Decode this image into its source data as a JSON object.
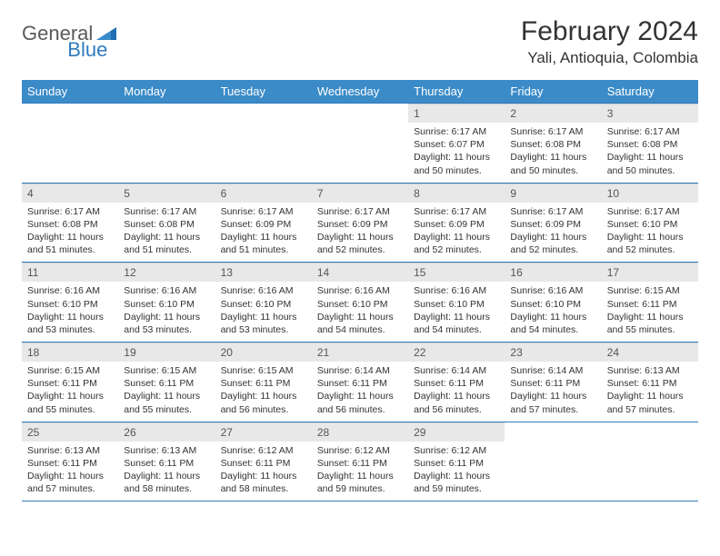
{
  "brand": {
    "text1": "General",
    "text2": "Blue"
  },
  "title": "February 2024",
  "location": "Yali, Antioquia, Colombia",
  "colors": {
    "header_bg": "#3b8bc8",
    "header_text": "#ffffff",
    "daynum_bg": "#e8e8e8",
    "border": "#2f7bbf",
    "logo_gray": "#5a5a5a",
    "logo_blue": "#2f7bbf"
  },
  "day_headers": [
    "Sunday",
    "Monday",
    "Tuesday",
    "Wednesday",
    "Thursday",
    "Friday",
    "Saturday"
  ],
  "weeks": [
    [
      null,
      null,
      null,
      null,
      {
        "n": "1",
        "sunrise": "6:17 AM",
        "sunset": "6:07 PM",
        "dl": "11 hours and 50 minutes."
      },
      {
        "n": "2",
        "sunrise": "6:17 AM",
        "sunset": "6:08 PM",
        "dl": "11 hours and 50 minutes."
      },
      {
        "n": "3",
        "sunrise": "6:17 AM",
        "sunset": "6:08 PM",
        "dl": "11 hours and 50 minutes."
      }
    ],
    [
      {
        "n": "4",
        "sunrise": "6:17 AM",
        "sunset": "6:08 PM",
        "dl": "11 hours and 51 minutes."
      },
      {
        "n": "5",
        "sunrise": "6:17 AM",
        "sunset": "6:08 PM",
        "dl": "11 hours and 51 minutes."
      },
      {
        "n": "6",
        "sunrise": "6:17 AM",
        "sunset": "6:09 PM",
        "dl": "11 hours and 51 minutes."
      },
      {
        "n": "7",
        "sunrise": "6:17 AM",
        "sunset": "6:09 PM",
        "dl": "11 hours and 52 minutes."
      },
      {
        "n": "8",
        "sunrise": "6:17 AM",
        "sunset": "6:09 PM",
        "dl": "11 hours and 52 minutes."
      },
      {
        "n": "9",
        "sunrise": "6:17 AM",
        "sunset": "6:09 PM",
        "dl": "11 hours and 52 minutes."
      },
      {
        "n": "10",
        "sunrise": "6:17 AM",
        "sunset": "6:10 PM",
        "dl": "11 hours and 52 minutes."
      }
    ],
    [
      {
        "n": "11",
        "sunrise": "6:16 AM",
        "sunset": "6:10 PM",
        "dl": "11 hours and 53 minutes."
      },
      {
        "n": "12",
        "sunrise": "6:16 AM",
        "sunset": "6:10 PM",
        "dl": "11 hours and 53 minutes."
      },
      {
        "n": "13",
        "sunrise": "6:16 AM",
        "sunset": "6:10 PM",
        "dl": "11 hours and 53 minutes."
      },
      {
        "n": "14",
        "sunrise": "6:16 AM",
        "sunset": "6:10 PM",
        "dl": "11 hours and 54 minutes."
      },
      {
        "n": "15",
        "sunrise": "6:16 AM",
        "sunset": "6:10 PM",
        "dl": "11 hours and 54 minutes."
      },
      {
        "n": "16",
        "sunrise": "6:16 AM",
        "sunset": "6:10 PM",
        "dl": "11 hours and 54 minutes."
      },
      {
        "n": "17",
        "sunrise": "6:15 AM",
        "sunset": "6:11 PM",
        "dl": "11 hours and 55 minutes."
      }
    ],
    [
      {
        "n": "18",
        "sunrise": "6:15 AM",
        "sunset": "6:11 PM",
        "dl": "11 hours and 55 minutes."
      },
      {
        "n": "19",
        "sunrise": "6:15 AM",
        "sunset": "6:11 PM",
        "dl": "11 hours and 55 minutes."
      },
      {
        "n": "20",
        "sunrise": "6:15 AM",
        "sunset": "6:11 PM",
        "dl": "11 hours and 56 minutes."
      },
      {
        "n": "21",
        "sunrise": "6:14 AM",
        "sunset": "6:11 PM",
        "dl": "11 hours and 56 minutes."
      },
      {
        "n": "22",
        "sunrise": "6:14 AM",
        "sunset": "6:11 PM",
        "dl": "11 hours and 56 minutes."
      },
      {
        "n": "23",
        "sunrise": "6:14 AM",
        "sunset": "6:11 PM",
        "dl": "11 hours and 57 minutes."
      },
      {
        "n": "24",
        "sunrise": "6:13 AM",
        "sunset": "6:11 PM",
        "dl": "11 hours and 57 minutes."
      }
    ],
    [
      {
        "n": "25",
        "sunrise": "6:13 AM",
        "sunset": "6:11 PM",
        "dl": "11 hours and 57 minutes."
      },
      {
        "n": "26",
        "sunrise": "6:13 AM",
        "sunset": "6:11 PM",
        "dl": "11 hours and 58 minutes."
      },
      {
        "n": "27",
        "sunrise": "6:12 AM",
        "sunset": "6:11 PM",
        "dl": "11 hours and 58 minutes."
      },
      {
        "n": "28",
        "sunrise": "6:12 AM",
        "sunset": "6:11 PM",
        "dl": "11 hours and 59 minutes."
      },
      {
        "n": "29",
        "sunrise": "6:12 AM",
        "sunset": "6:11 PM",
        "dl": "11 hours and 59 minutes."
      },
      null,
      null
    ]
  ],
  "labels": {
    "sunrise": "Sunrise:",
    "sunset": "Sunset:",
    "daylight": "Daylight:"
  }
}
